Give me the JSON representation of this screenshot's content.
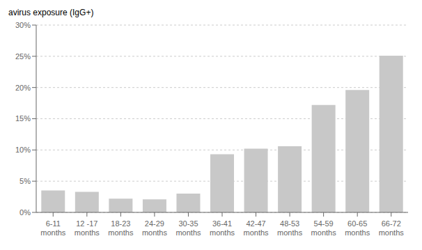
{
  "chart_data": {
    "type": "bar",
    "ylabel": "avirus exposure (IgG+)",
    "categories": [
      "6-11\nmonths",
      "12 -17\nmonths",
      "18-23\nmonths",
      "24-29\nmonths",
      "30-35\nmonths",
      "36-41\nmonths",
      "42-47\nmonths",
      "48-53\nmonths",
      "54-59\nmonths",
      "60-65\nmonths",
      "66-72\nmonths"
    ],
    "values": [
      3.5,
      3.3,
      2.2,
      2.1,
      3.0,
      9.3,
      10.2,
      10.6,
      17.2,
      19.6,
      25.1
    ],
    "color": "#c8c8c8",
    "ylim": [
      0,
      30
    ],
    "yticks": [
      {
        "value": 0,
        "label": "0%"
      },
      {
        "value": 5,
        "label": "5%"
      },
      {
        "value": 10,
        "label": "10%"
      },
      {
        "value": 15,
        "label": "15%"
      },
      {
        "value": 20,
        "label": "20%"
      },
      {
        "value": 25,
        "label": "25%"
      },
      {
        "value": 30,
        "label": "30%"
      }
    ],
    "grid": true
  }
}
